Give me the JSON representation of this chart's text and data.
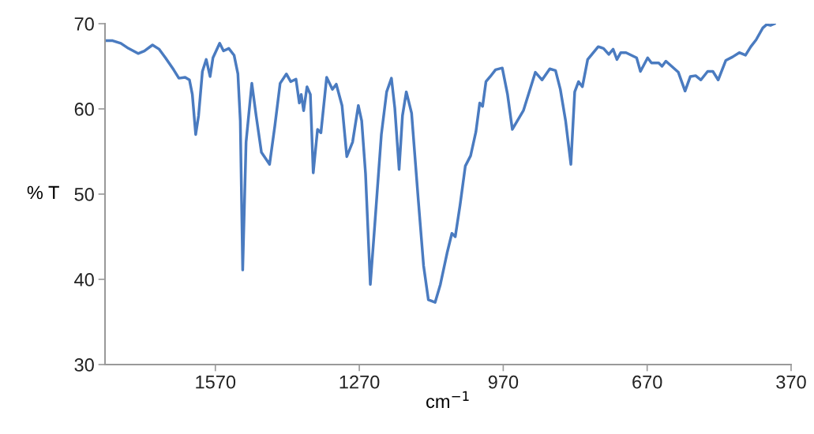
{
  "chart_data": {
    "type": "line",
    "xlabel": "cm$^{−1}$",
    "ylabel": "% T",
    "xlim": [
      1800,
      370
    ],
    "xticks": [
      1570,
      1270,
      970,
      670,
      370
    ],
    "ylim": [
      30,
      70
    ],
    "yticks": [
      30,
      40,
      50,
      60,
      70
    ],
    "grid": false,
    "legend": false,
    "marker": "none",
    "line_style": "solid",
    "series": [
      {
        "color": "#4a7bc0",
        "x": [
          1800,
          1784,
          1767,
          1751,
          1731,
          1718,
          1701,
          1687,
          1674,
          1657,
          1646,
          1633,
          1624,
          1618,
          1611,
          1605,
          1597,
          1589,
          1581,
          1575,
          1561,
          1553,
          1542,
          1531,
          1523,
          1518,
          1513,
          1506,
          1494,
          1485,
          1474,
          1457,
          1446,
          1435,
          1422,
          1413,
          1402,
          1395,
          1391,
          1386,
          1379,
          1372,
          1366,
          1357,
          1350,
          1338,
          1326,
          1318,
          1306,
          1296,
          1284,
          1272,
          1265,
          1257,
          1247,
          1238,
          1224,
          1213,
          1203,
          1196,
          1187,
          1180,
          1172,
          1161,
          1147,
          1136,
          1126,
          1112,
          1101,
          1087,
          1077,
          1070,
          1060,
          1049,
          1038,
          1027,
          1019,
          1013,
          1006,
          997,
          986,
          972,
          961,
          951,
          928,
          903,
          889,
          873,
          861,
          851,
          840,
          829,
          821,
          813,
          805,
          794,
          772,
          761,
          750,
          741,
          733,
          725,
          714,
          692,
          684,
          669,
          661,
          646,
          639,
          631,
          605,
          591,
          580,
          569,
          558,
          544,
          533,
          522,
          506,
          492,
          478,
          465,
          454,
          443,
          429,
          421,
          413,
          405
        ],
        "values": [
          68.0,
          68.0,
          67.7,
          67.1,
          66.5,
          66.8,
          67.5,
          67.0,
          66.0,
          64.6,
          63.6,
          63.7,
          63.4,
          61.7,
          57.0,
          59.2,
          64.4,
          65.8,
          63.8,
          66.0,
          67.7,
          66.8,
          67.1,
          66.3,
          64.1,
          58.6,
          41.1,
          56.1,
          63.0,
          59.2,
          54.9,
          53.5,
          58.0,
          63.0,
          64.1,
          63.2,
          63.5,
          60.7,
          61.7,
          59.8,
          62.6,
          61.7,
          52.5,
          57.6,
          57.2,
          63.7,
          62.3,
          62.9,
          60.4,
          54.4,
          56.1,
          60.4,
          58.6,
          52.4,
          39.4,
          46.2,
          57.0,
          62.0,
          63.6,
          60.1,
          52.9,
          59.2,
          62.0,
          59.5,
          49.3,
          41.6,
          37.6,
          37.3,
          39.4,
          43.1,
          45.4,
          45.0,
          48.7,
          53.3,
          54.5,
          57.3,
          60.7,
          60.3,
          63.2,
          63.8,
          64.6,
          64.8,
          61.7,
          57.6,
          59.8,
          64.3,
          63.4,
          64.7,
          64.5,
          62.3,
          58.6,
          53.5,
          62.0,
          63.2,
          62.6,
          65.8,
          67.3,
          67.1,
          66.4,
          67.0,
          65.8,
          66.6,
          66.6,
          66.0,
          64.4,
          66.0,
          65.4,
          65.4,
          65.0,
          65.6,
          64.3,
          62.1,
          63.8,
          63.9,
          63.4,
          64.4,
          64.4,
          63.4,
          65.7,
          66.1,
          66.6,
          66.3,
          67.3,
          68.1,
          69.5,
          69.9,
          69.8,
          70.0
        ]
      }
    ]
  }
}
